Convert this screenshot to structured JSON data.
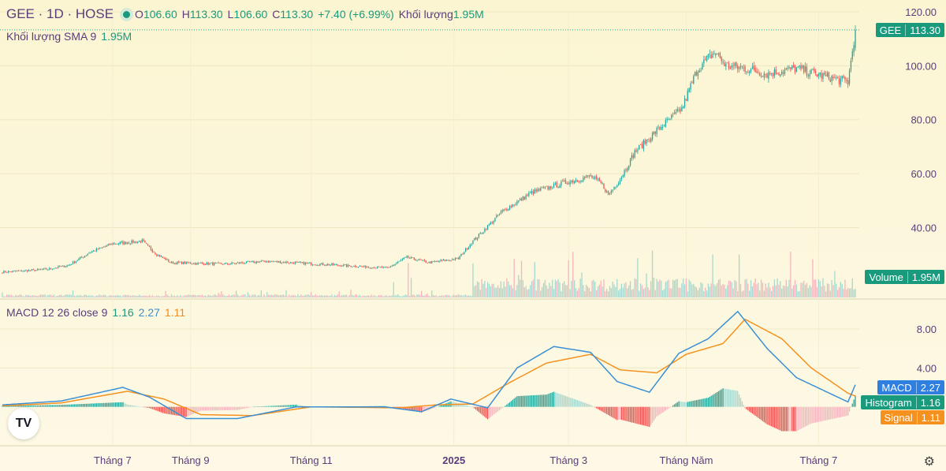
{
  "header": {
    "symbol": "GEE",
    "interval": "1D",
    "exchange": "HOSE",
    "open_label": "O",
    "open": "106.60",
    "high_label": "H",
    "high": "113.30",
    "low_label": "L",
    "low": "106.60",
    "close_label": "C",
    "close": "113.30",
    "change": "+7.40 (+6.99%)",
    "volume_label": "Khối lượng",
    "volume": "1.95M"
  },
  "volume_sma": {
    "label": "Khối lượng SMA 9",
    "value": "1.95M"
  },
  "macd_legend": {
    "label": "MACD 12 26 close 9",
    "hist": "1.16",
    "macd": "2.27",
    "signal": "1.11"
  },
  "tags": {
    "price_name": "GEE",
    "price_value": "113.30",
    "volume_name": "Volume",
    "volume_value": "1.95M",
    "macd_name": "MACD",
    "macd_value": "2.27",
    "hist_name": "Histogram",
    "hist_value": "1.16",
    "signal_name": "Signal",
    "signal_value": "1.11"
  },
  "colors": {
    "up": "#26a69a",
    "down": "#ef5350",
    "macd": "#3d8fd4",
    "signal": "#f5911e",
    "vol_up": "#a6d8d0",
    "vol_down": "#f5b5be"
  },
  "chart_data": [
    {
      "type": "candlestick",
      "title": "GEE · 1D · HOSE",
      "ylim": [
        22,
        120
      ],
      "y_ticks": [
        "120.00",
        "100.00",
        "80.00",
        "60.00",
        "40.00"
      ],
      "x_ticks": [
        "Tháng 7",
        "Tháng 9",
        "Tháng 11",
        "2025",
        "Tháng 3",
        "Tháng Năm",
        "Tháng 7"
      ],
      "last_close": 113.3,
      "anchors": [
        [
          0,
          23.5
        ],
        [
          30,
          24.5
        ],
        [
          45,
          26
        ],
        [
          60,
          31
        ],
        [
          75,
          34
        ],
        [
          95,
          35
        ],
        [
          105,
          30
        ],
        [
          115,
          27
        ],
        [
          150,
          26.5
        ],
        [
          180,
          27.5
        ],
        [
          230,
          26
        ],
        [
          262,
          25
        ],
        [
          275,
          29
        ],
        [
          290,
          27
        ],
        [
          310,
          28.5
        ],
        [
          320,
          35
        ],
        [
          340,
          46
        ],
        [
          360,
          53
        ],
        [
          385,
          57
        ],
        [
          400,
          59
        ],
        [
          408,
          56
        ],
        [
          412,
          52
        ],
        [
          420,
          58
        ],
        [
          430,
          68
        ],
        [
          445,
          76
        ],
        [
          462,
          84
        ],
        [
          472,
          98
        ],
        [
          480,
          103
        ],
        [
          485,
          105
        ],
        [
          492,
          100
        ],
        [
          505,
          99
        ],
        [
          520,
          97
        ],
        [
          540,
          99
        ],
        [
          560,
          96
        ],
        [
          575,
          94
        ],
        [
          580,
          113.3
        ]
      ]
    },
    {
      "type": "bar",
      "title": "Volume",
      "ylabel": "Khối lượng",
      "last_value": "1.95M"
    },
    {
      "type": "line",
      "title": "MACD 12 26 close 9",
      "ylim": [
        -4,
        11
      ],
      "y_ticks": [
        "8.00",
        "4.00"
      ],
      "series": [
        {
          "name": "MACD",
          "last": 2.27,
          "anchors": [
            [
              0,
              0.2
            ],
            [
              40,
              0.6
            ],
            [
              82,
              2.0
            ],
            [
              100,
              1.0
            ],
            [
              125,
              -1.2
            ],
            [
              160,
              -1.2
            ],
            [
              200,
              0.0
            ],
            [
              260,
              0.0
            ],
            [
              285,
              -0.5
            ],
            [
              305,
              0.8
            ],
            [
              330,
              -0.1
            ],
            [
              350,
              4.0
            ],
            [
              375,
              6.2
            ],
            [
              400,
              5.6
            ],
            [
              418,
              2.6
            ],
            [
              440,
              1.5
            ],
            [
              460,
              5.5
            ],
            [
              480,
              7.0
            ],
            [
              500,
              9.8
            ],
            [
              520,
              6.0
            ],
            [
              540,
              3.0
            ],
            [
              575,
              0.5
            ],
            [
              580,
              2.27
            ]
          ]
        },
        {
          "name": "Signal",
          "last": 1.11,
          "anchors": [
            [
              0,
              0.1
            ],
            [
              40,
              0.4
            ],
            [
              85,
              1.6
            ],
            [
              110,
              0.8
            ],
            [
              135,
              -0.8
            ],
            [
              170,
              -0.9
            ],
            [
              210,
              0.0
            ],
            [
              270,
              -0.1
            ],
            [
              295,
              0.2
            ],
            [
              320,
              0.3
            ],
            [
              345,
              2.5
            ],
            [
              370,
              4.5
            ],
            [
              400,
              5.4
            ],
            [
              420,
              3.8
            ],
            [
              445,
              3.5
            ],
            [
              465,
              5.4
            ],
            [
              490,
              6.5
            ],
            [
              505,
              9.0
            ],
            [
              530,
              7.0
            ],
            [
              550,
              4.0
            ],
            [
              575,
              1.4
            ],
            [
              580,
              1.11
            ]
          ]
        },
        {
          "name": "Histogram",
          "last": 1.16
        }
      ]
    }
  ]
}
